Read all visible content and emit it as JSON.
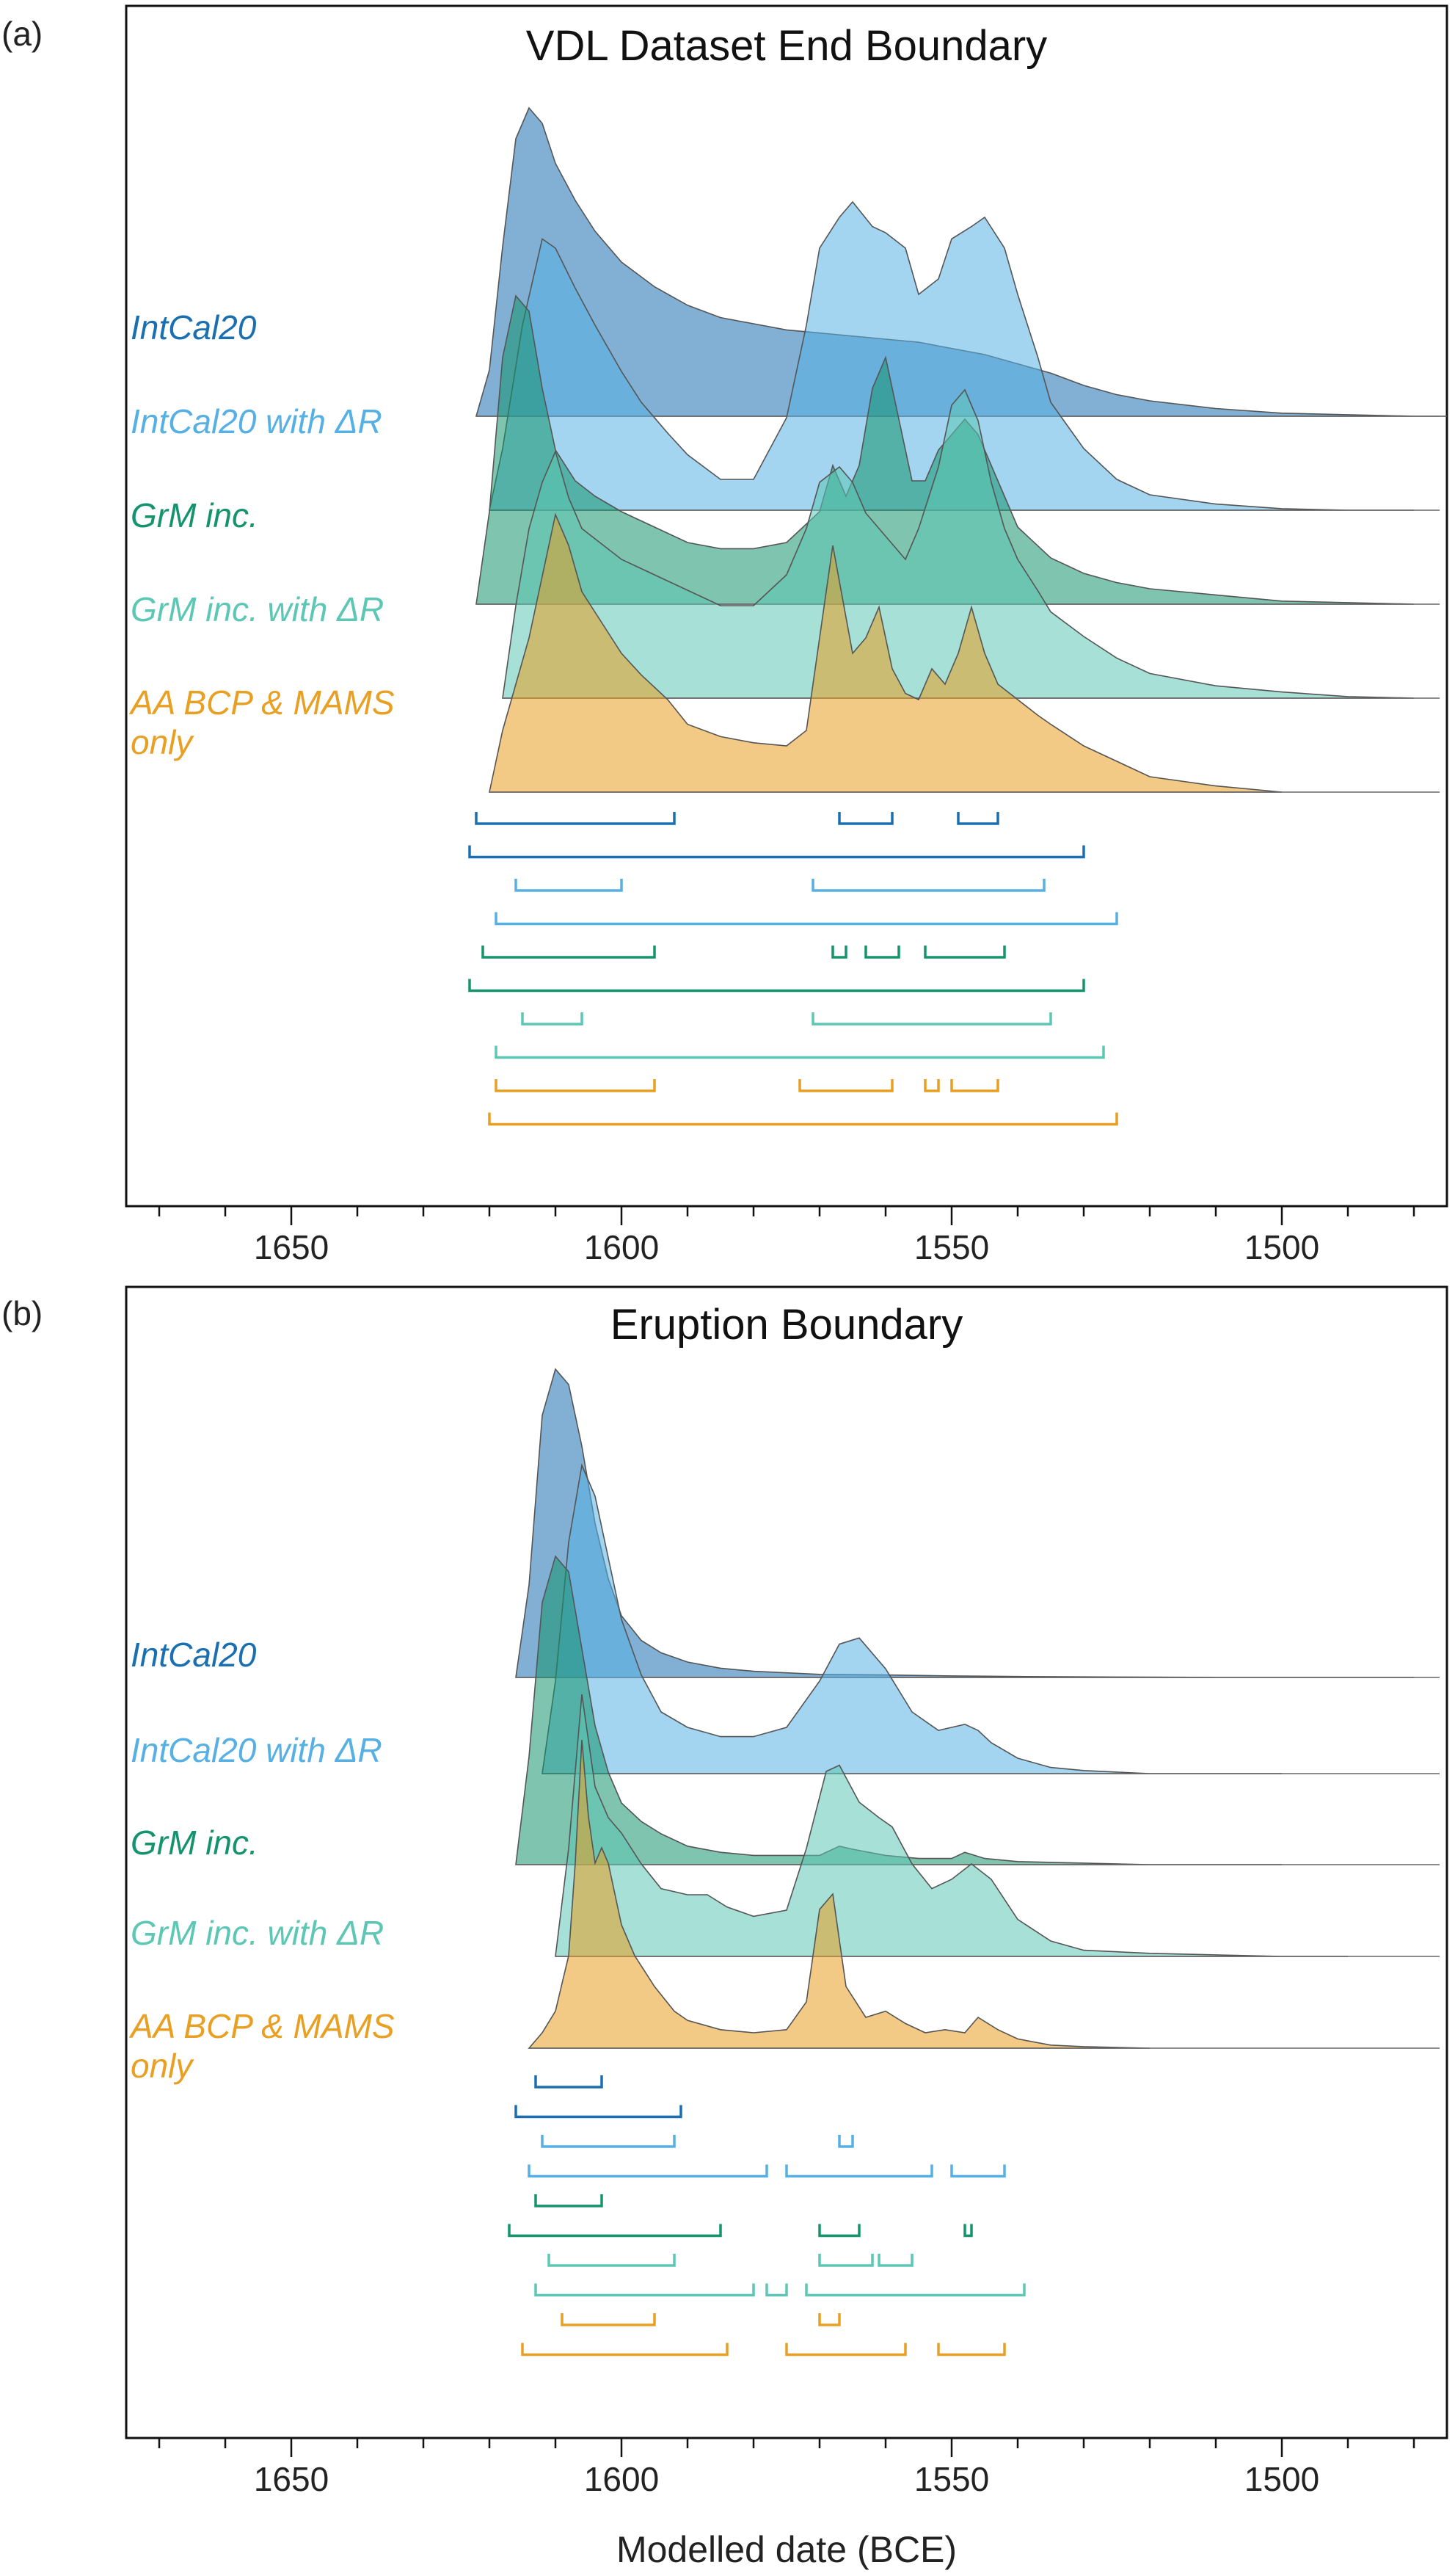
{
  "figure": {
    "xlabel": "Modelled date (BCE)",
    "colors": {
      "intcal": "#1a6fb0",
      "intcal_dr": "#57b0e3",
      "grm": "#14936c",
      "grm_dr": "#5cc7b4",
      "aa": "#e89f22"
    }
  },
  "chart_data": [
    {
      "panel": "(a)",
      "type": "area",
      "title": "VDL Dataset End Boundary",
      "xlabel": "Modelled date (BCE)",
      "x_axis": {
        "reversed": true,
        "xlim": [
          1675,
          1475
        ],
        "ticks": [
          1650,
          1600,
          1550,
          1500
        ],
        "tick_labels": [
          "1650",
          "1600",
          "1550",
          "1500"
        ]
      },
      "series": [
        {
          "name": "IntCal20",
          "label_lines": [
            "IntCal20"
          ],
          "color": "#1a6fb0",
          "x": [
            1622,
            1620,
            1618,
            1616,
            1614,
            1612,
            1610,
            1607,
            1604,
            1600,
            1595,
            1590,
            1585,
            1580,
            1575,
            1570,
            1565,
            1560,
            1555,
            1550,
            1545,
            1540,
            1535,
            1530,
            1525,
            1520,
            1510,
            1500,
            1490,
            1480,
            1475
          ],
          "y": [
            0,
            0.15,
            0.55,
            0.9,
            1.0,
            0.95,
            0.82,
            0.7,
            0.6,
            0.5,
            0.42,
            0.36,
            0.32,
            0.3,
            0.28,
            0.27,
            0.26,
            0.25,
            0.24,
            0.22,
            0.2,
            0.17,
            0.14,
            0.1,
            0.07,
            0.05,
            0.025,
            0.01,
            0.005,
            0,
            0
          ],
          "hpd_68": [
            [
              1622,
              1592
            ],
            [
              1567,
              1559
            ],
            [
              1549,
              1543
            ]
          ],
          "hpd_95": [
            [
              1623,
              1530
            ]
          ]
        },
        {
          "name": "IntCal20 with ΔR",
          "label_lines": [
            "IntCal20 with ΔR"
          ],
          "color": "#57b0e3",
          "x": [
            1620,
            1618,
            1615,
            1612,
            1610,
            1607,
            1604,
            1600,
            1597,
            1593,
            1590,
            1585,
            1580,
            1575,
            1572,
            1570,
            1567,
            1565,
            1562,
            1560,
            1557,
            1555,
            1552,
            1550,
            1547,
            1545,
            1542,
            1540,
            1537,
            1535,
            1530,
            1525,
            1520,
            1510,
            1500,
            1490,
            1480
          ],
          "y": [
            0,
            0.2,
            0.6,
            0.88,
            0.85,
            0.72,
            0.6,
            0.45,
            0.35,
            0.25,
            0.18,
            0.1,
            0.1,
            0.3,
            0.6,
            0.85,
            0.95,
            1.0,
            0.92,
            0.9,
            0.85,
            0.7,
            0.75,
            0.88,
            0.92,
            0.95,
            0.85,
            0.7,
            0.5,
            0.35,
            0.2,
            0.1,
            0.05,
            0.02,
            0.005,
            0,
            0
          ],
          "hpd_68": [
            [
              1616,
              1600
            ],
            [
              1571,
              1536
            ]
          ],
          "hpd_95": [
            [
              1619,
              1525
            ]
          ]
        },
        {
          "name": "GrM inc.",
          "label_lines": [
            "GrM inc."
          ],
          "color": "#14936c",
          "x": [
            1622,
            1620,
            1618,
            1616,
            1614,
            1612,
            1610,
            1607,
            1604,
            1600,
            1595,
            1590,
            1585,
            1580,
            1575,
            1570,
            1568,
            1566,
            1564,
            1562,
            1560,
            1558,
            1556,
            1554,
            1552,
            1550,
            1548,
            1546,
            1544,
            1542,
            1540,
            1535,
            1530,
            1525,
            1520,
            1510,
            1500,
            1490,
            1480
          ],
          "y": [
            0,
            0.3,
            0.8,
            1.0,
            0.95,
            0.7,
            0.5,
            0.4,
            0.35,
            0.3,
            0.25,
            0.2,
            0.18,
            0.18,
            0.2,
            0.3,
            0.45,
            0.35,
            0.45,
            0.7,
            0.8,
            0.6,
            0.4,
            0.4,
            0.5,
            0.55,
            0.6,
            0.55,
            0.45,
            0.35,
            0.25,
            0.15,
            0.1,
            0.07,
            0.05,
            0.03,
            0.01,
            0.005,
            0
          ],
          "hpd_68": [
            [
              1621,
              1595
            ],
            [
              1568,
              1566
            ],
            [
              1563,
              1558
            ],
            [
              1554,
              1542
            ]
          ],
          "hpd_95": [
            [
              1623,
              1530
            ]
          ]
        },
        {
          "name": "GrM inc. with ΔR",
          "label_lines": [
            "GrM inc. with ΔR"
          ],
          "color": "#5cc7b4",
          "x": [
            1618,
            1616,
            1614,
            1612,
            1610,
            1608,
            1606,
            1603,
            1600,
            1595,
            1590,
            1585,
            1580,
            1575,
            1572,
            1570,
            1567,
            1565,
            1563,
            1561,
            1559,
            1557,
            1555,
            1552,
            1550,
            1548,
            1546,
            1544,
            1542,
            1540,
            1537,
            1535,
            1530,
            1525,
            1520,
            1510,
            1500,
            1490,
            1480
          ],
          "y": [
            0,
            0.3,
            0.55,
            0.7,
            0.8,
            0.65,
            0.55,
            0.5,
            0.45,
            0.4,
            0.35,
            0.3,
            0.3,
            0.4,
            0.55,
            0.7,
            0.75,
            0.7,
            0.6,
            0.55,
            0.5,
            0.45,
            0.55,
            0.75,
            0.95,
            1.0,
            0.9,
            0.7,
            0.55,
            0.45,
            0.35,
            0.28,
            0.2,
            0.13,
            0.08,
            0.04,
            0.02,
            0.005,
            0
          ],
          "hpd_68": [
            [
              1615,
              1606
            ],
            [
              1571,
              1535
            ]
          ],
          "hpd_95": [
            [
              1619,
              1527
            ]
          ]
        },
        {
          "name": "AA BCP & MAMS only",
          "label_lines": [
            "AA BCP &amp; MAMS",
            "only"
          ],
          "color": "#e89f22",
          "x": [
            1620,
            1618,
            1616,
            1614,
            1612,
            1610,
            1608,
            1606,
            1603,
            1600,
            1597,
            1593,
            1590,
            1585,
            1580,
            1575,
            1572,
            1570,
            1568,
            1565,
            1563,
            1561,
            1559,
            1557,
            1555,
            1553,
            1551,
            1549,
            1547,
            1545,
            1543,
            1540,
            1537,
            1535,
            1530,
            1525,
            1520,
            1510,
            1500
          ],
          "y": [
            0,
            0.2,
            0.35,
            0.5,
            0.7,
            0.9,
            0.8,
            0.65,
            0.55,
            0.45,
            0.38,
            0.3,
            0.22,
            0.18,
            0.16,
            0.15,
            0.2,
            0.5,
            0.8,
            0.45,
            0.5,
            0.6,
            0.4,
            0.32,
            0.3,
            0.4,
            0.35,
            0.45,
            0.6,
            0.45,
            0.35,
            0.3,
            0.25,
            0.22,
            0.15,
            0.1,
            0.05,
            0.02,
            0
          ],
          "hpd_68": [
            [
              1619,
              1595
            ],
            [
              1573,
              1559
            ],
            [
              1554,
              1552
            ],
            [
              1550,
              1543
            ]
          ],
          "hpd_95": [
            [
              1620,
              1525
            ]
          ]
        }
      ]
    },
    {
      "panel": "(b)",
      "type": "area",
      "title": "Eruption Boundary",
      "xlabel": "Modelled date (BCE)",
      "x_axis": {
        "reversed": true,
        "xlim": [
          1675,
          1475
        ],
        "ticks": [
          1650,
          1600,
          1550,
          1500
        ],
        "tick_labels": [
          "1650",
          "1600",
          "1550",
          "1500"
        ]
      },
      "series": [
        {
          "name": "IntCal20",
          "label_lines": [
            "IntCal20"
          ],
          "color": "#1a6fb0",
          "x": [
            1616,
            1614,
            1612,
            1610,
            1608,
            1606,
            1604,
            1602,
            1600,
            1597,
            1594,
            1590,
            1585,
            1580,
            1575,
            1570,
            1560,
            1550,
            1540,
            1530,
            1520,
            1510,
            1500,
            1490,
            1480
          ],
          "y": [
            0,
            0.3,
            0.85,
            1.0,
            0.95,
            0.75,
            0.5,
            0.32,
            0.2,
            0.12,
            0.08,
            0.05,
            0.03,
            0.02,
            0.015,
            0.01,
            0.008,
            0.005,
            0.003,
            0.002,
            0.001,
            0,
            0,
            0,
            0
          ],
          "hpd_68": [
            [
              1613,
              1603
            ]
          ],
          "hpd_95": [
            [
              1616,
              1591
            ]
          ]
        },
        {
          "name": "IntCal20 with ΔR",
          "label_lines": [
            "IntCal20 with ΔR"
          ],
          "color": "#57b0e3",
          "x": [
            1612,
            1610,
            1608,
            1606,
            1604,
            1602,
            1600,
            1597,
            1594,
            1590,
            1585,
            1580,
            1575,
            1570,
            1567,
            1564,
            1560,
            1556,
            1552,
            1550,
            1548,
            1546,
            1544,
            1540,
            1535,
            1530,
            1525,
            1520,
            1510,
            1500
          ],
          "y": [
            0,
            0.3,
            0.75,
            1.0,
            0.9,
            0.7,
            0.5,
            0.32,
            0.2,
            0.15,
            0.12,
            0.12,
            0.15,
            0.3,
            0.42,
            0.44,
            0.34,
            0.2,
            0.14,
            0.15,
            0.16,
            0.14,
            0.1,
            0.05,
            0.02,
            0.01,
            0.005,
            0,
            0,
            0
          ],
          "hpd_68": [
            [
              1612,
              1592
            ],
            [
              1567,
              1565
            ]
          ],
          "hpd_95": [
            [
              1614,
              1578
            ],
            [
              1575,
              1553
            ],
            [
              1550,
              1542
            ]
          ]
        },
        {
          "name": "GrM inc.",
          "label_lines": [
            "GrM inc."
          ],
          "color": "#14936c",
          "x": [
            1616,
            1614,
            1612,
            1610,
            1608,
            1606,
            1604,
            1602,
            1600,
            1597,
            1594,
            1590,
            1585,
            1580,
            1575,
            1570,
            1567,
            1565,
            1560,
            1555,
            1550,
            1548,
            1545,
            1540,
            1530,
            1520,
            1510,
            1500
          ],
          "y": [
            0,
            0.35,
            0.85,
            1.0,
            0.95,
            0.7,
            0.45,
            0.3,
            0.2,
            0.14,
            0.1,
            0.06,
            0.04,
            0.03,
            0.03,
            0.03,
            0.06,
            0.05,
            0.03,
            0.02,
            0.02,
            0.04,
            0.02,
            0.01,
            0.005,
            0,
            0,
            0
          ],
          "hpd_68": [
            [
              1613,
              1603
            ]
          ],
          "hpd_95": [
            [
              1617,
              1585
            ],
            [
              1570,
              1564
            ],
            [
              1548,
              1547
            ]
          ]
        },
        {
          "name": "GrM inc. with ΔR",
          "label_lines": [
            "GrM inc. with ΔR"
          ],
          "color": "#5cc7b4",
          "x": [
            1610,
            1608,
            1606,
            1604,
            1602,
            1600,
            1597,
            1594,
            1590,
            1587,
            1584,
            1580,
            1575,
            1572,
            1569,
            1567,
            1564,
            1561,
            1559,
            1556,
            1553,
            1550,
            1547,
            1544,
            1540,
            1535,
            1530,
            1520,
            1510,
            1500,
            1490
          ],
          "y": [
            0,
            0.35,
            0.85,
            0.55,
            0.45,
            0.4,
            0.3,
            0.22,
            0.2,
            0.2,
            0.16,
            0.13,
            0.15,
            0.35,
            0.6,
            0.62,
            0.5,
            0.45,
            0.42,
            0.3,
            0.22,
            0.25,
            0.3,
            0.25,
            0.12,
            0.05,
            0.02,
            0.01,
            0.005,
            0,
            0
          ],
          "hpd_68": [
            [
              1611,
              1592
            ],
            [
              1570,
              1562
            ],
            [
              1561,
              1556
            ]
          ],
          "hpd_95": [
            [
              1613,
              1580
            ],
            [
              1578,
              1575
            ],
            [
              1572,
              1539
            ]
          ]
        },
        {
          "name": "AA BCP & MAMS only",
          "label_lines": [
            "AA BCP &amp; MAMS",
            "only"
          ],
          "color": "#e89f22",
          "x": [
            1614,
            1612,
            1610,
            1608,
            1607,
            1606,
            1605,
            1604,
            1603,
            1602,
            1601,
            1600,
            1598,
            1595,
            1592,
            1590,
            1585,
            1580,
            1575,
            1572,
            1570,
            1568,
            1566,
            1563,
            1560,
            1557,
            1554,
            1551,
            1548,
            1546,
            1543,
            1540,
            1535,
            1530,
            1520
          ],
          "y": [
            0,
            0.05,
            0.12,
            0.3,
            0.6,
            1.0,
            0.75,
            0.6,
            0.65,
            0.6,
            0.5,
            0.4,
            0.3,
            0.2,
            0.12,
            0.09,
            0.06,
            0.05,
            0.06,
            0.15,
            0.45,
            0.5,
            0.2,
            0.1,
            0.12,
            0.08,
            0.05,
            0.06,
            0.05,
            0.1,
            0.06,
            0.03,
            0.01,
            0.005,
            0
          ],
          "hpd_68": [
            [
              1609,
              1595
            ],
            [
              1570,
              1567
            ]
          ],
          "hpd_95": [
            [
              1615,
              1584
            ],
            [
              1575,
              1557
            ],
            [
              1552,
              1542
            ]
          ]
        }
      ]
    }
  ]
}
